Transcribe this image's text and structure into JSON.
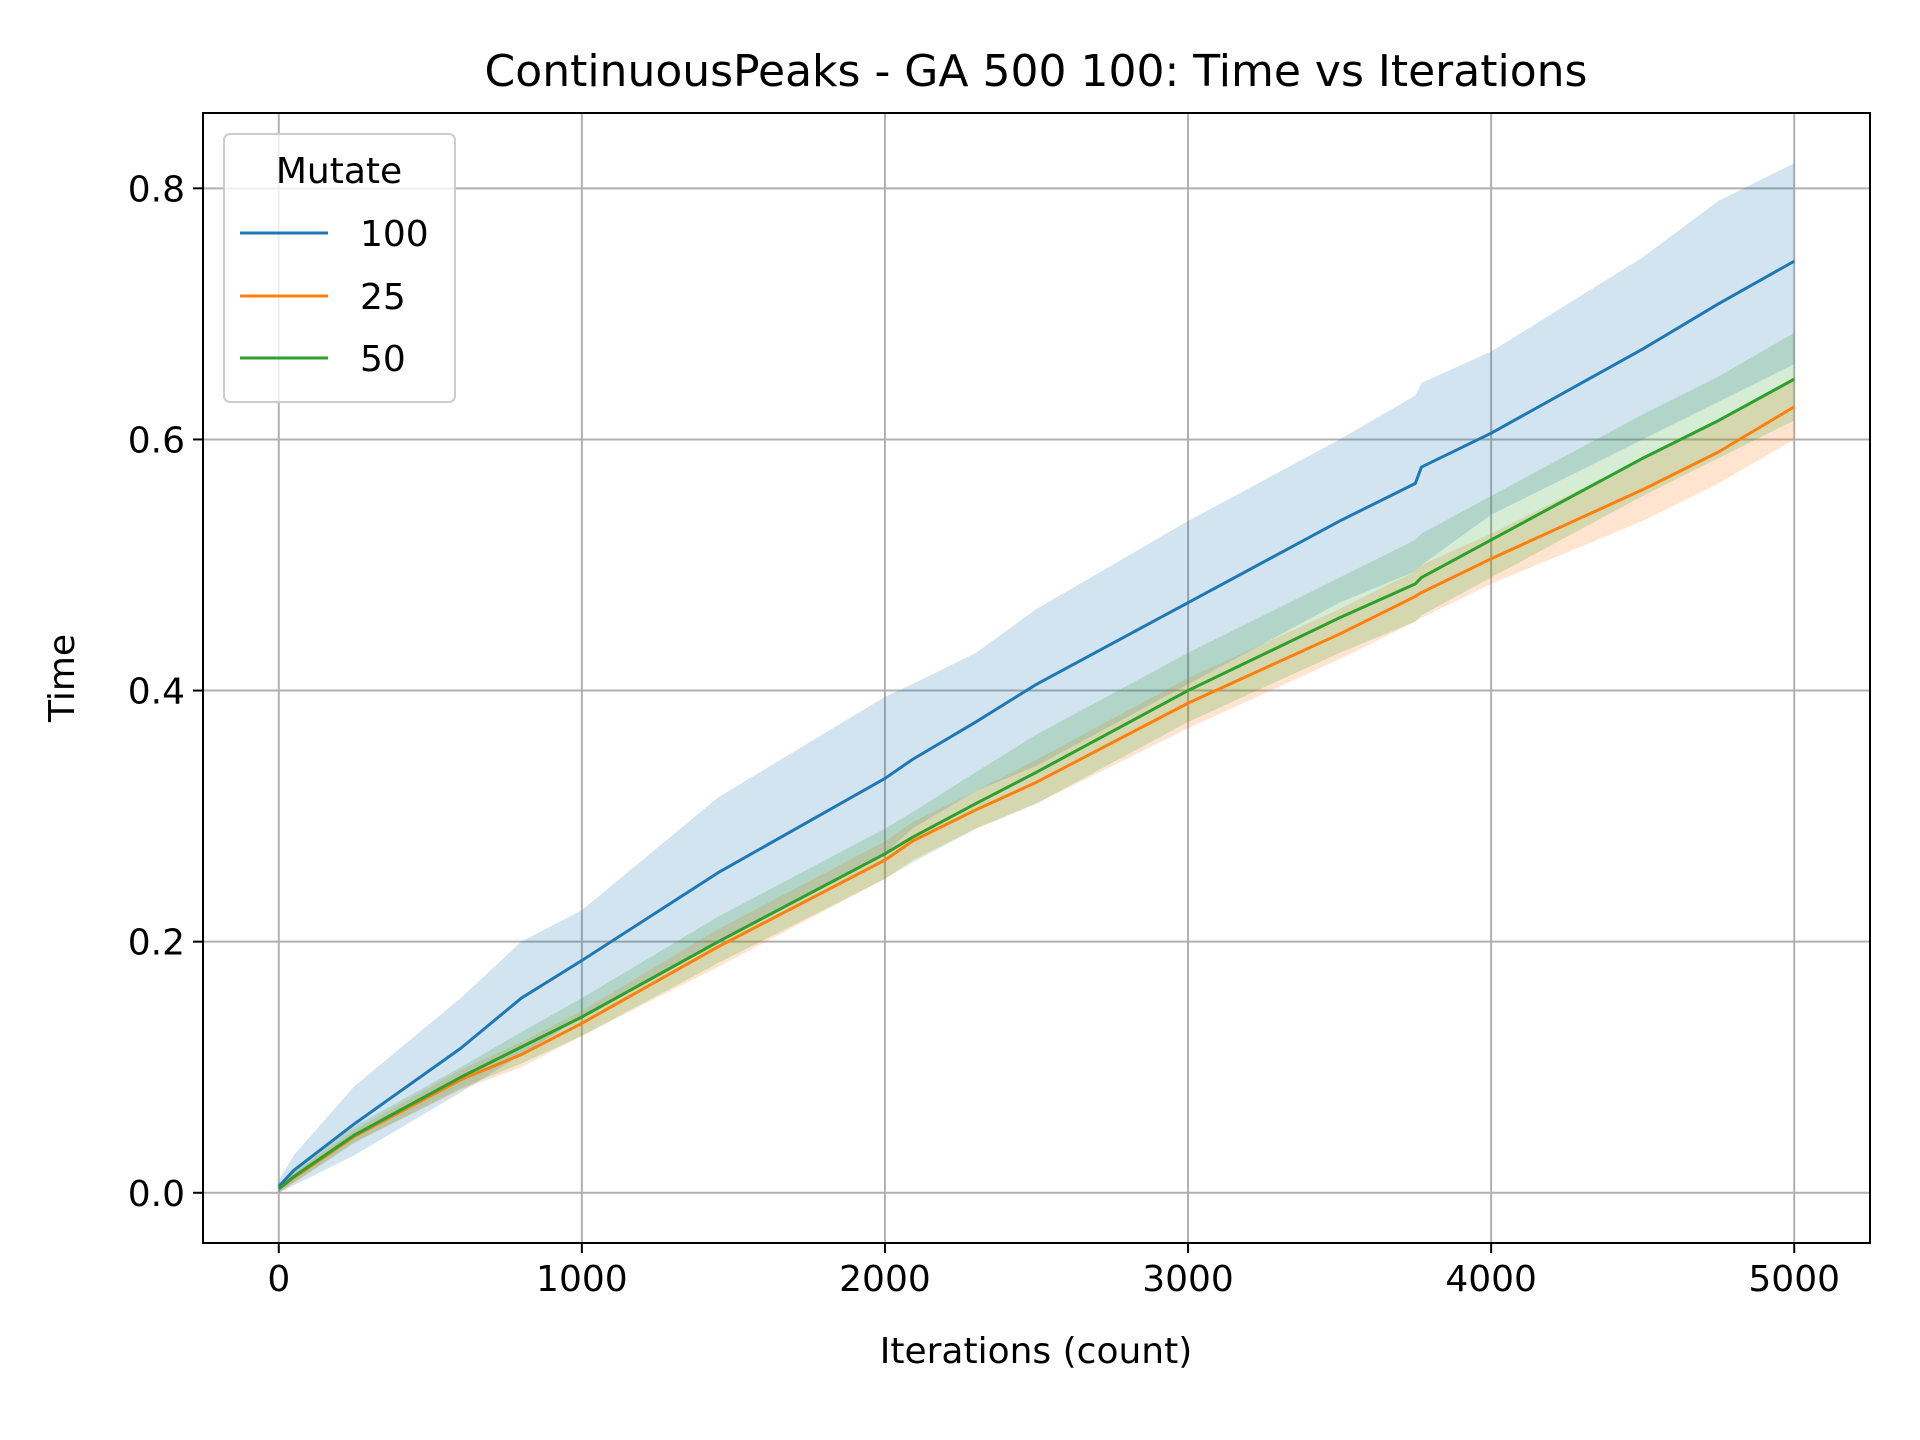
{
  "chart_data": {
    "type": "line",
    "title": "ContinuousPeaks - GA 500 100: Time vs Iterations",
    "xlabel": "Iterations (count)",
    "ylabel": "Time",
    "xlim": [
      -250,
      5250
    ],
    "ylim": [
      -0.04,
      0.86
    ],
    "xticks": [
      0,
      1000,
      2000,
      3000,
      4000,
      5000
    ],
    "xtick_labels": [
      "0",
      "1000",
      "2000",
      "3000",
      "4000",
      "5000"
    ],
    "yticks": [
      0.0,
      0.2,
      0.4,
      0.6,
      0.8
    ],
    "ytick_labels": [
      "0.0",
      "0.2",
      "0.4",
      "0.6",
      "0.8"
    ],
    "grid": true,
    "legend": {
      "title": "Mutate",
      "placement": "top-left"
    },
    "x": [
      0,
      50,
      250,
      600,
      800,
      1000,
      1450,
      2000,
      2090,
      2300,
      2500,
      3000,
      3500,
      3750,
      3770,
      4000,
      4500,
      4750,
      5000
    ],
    "series": [
      {
        "name": "100",
        "color": "#1f77b4",
        "values": [
          0.005,
          0.018,
          0.055,
          0.115,
          0.155,
          0.185,
          0.255,
          0.33,
          0.345,
          0.375,
          0.405,
          0.47,
          0.535,
          0.565,
          0.578,
          0.605,
          0.672,
          0.708,
          0.742
        ],
        "lower": [
          0.0,
          0.006,
          0.03,
          0.08,
          0.11,
          0.14,
          0.2,
          0.27,
          0.29,
          0.32,
          0.34,
          0.405,
          0.47,
          0.495,
          0.5,
          0.54,
          0.6,
          0.63,
          0.66
        ],
        "upper": [
          0.01,
          0.03,
          0.085,
          0.155,
          0.2,
          0.225,
          0.315,
          0.395,
          0.405,
          0.43,
          0.465,
          0.535,
          0.6,
          0.635,
          0.645,
          0.67,
          0.745,
          0.79,
          0.82
        ]
      },
      {
        "name": "25",
        "color": "#ff7f0e",
        "values": [
          0.003,
          0.012,
          0.045,
          0.09,
          0.11,
          0.135,
          0.196,
          0.265,
          0.28,
          0.305,
          0.327,
          0.39,
          0.445,
          0.475,
          0.478,
          0.505,
          0.56,
          0.59,
          0.626
        ],
        "lower": [
          0.0,
          0.008,
          0.04,
          0.082,
          0.1,
          0.125,
          0.18,
          0.25,
          0.265,
          0.29,
          0.31,
          0.37,
          0.425,
          0.455,
          0.458,
          0.485,
          0.535,
          0.565,
          0.6
        ],
        "upper": [
          0.006,
          0.016,
          0.05,
          0.098,
          0.12,
          0.145,
          0.21,
          0.28,
          0.295,
          0.32,
          0.345,
          0.41,
          0.465,
          0.495,
          0.5,
          0.525,
          0.585,
          0.615,
          0.65
        ]
      },
      {
        "name": "50",
        "color": "#2ca02c",
        "values": [
          0.003,
          0.013,
          0.046,
          0.092,
          0.116,
          0.14,
          0.2,
          0.27,
          0.283,
          0.31,
          0.335,
          0.4,
          0.458,
          0.485,
          0.49,
          0.52,
          0.585,
          0.615,
          0.648
        ],
        "lower": [
          0.0,
          0.008,
          0.04,
          0.083,
          0.103,
          0.125,
          0.183,
          0.25,
          0.263,
          0.29,
          0.31,
          0.375,
          0.43,
          0.455,
          0.46,
          0.49,
          0.555,
          0.585,
          0.615
        ],
        "upper": [
          0.006,
          0.018,
          0.053,
          0.1,
          0.128,
          0.155,
          0.22,
          0.29,
          0.303,
          0.335,
          0.365,
          0.43,
          0.49,
          0.52,
          0.525,
          0.555,
          0.62,
          0.65,
          0.685
        ]
      }
    ]
  }
}
